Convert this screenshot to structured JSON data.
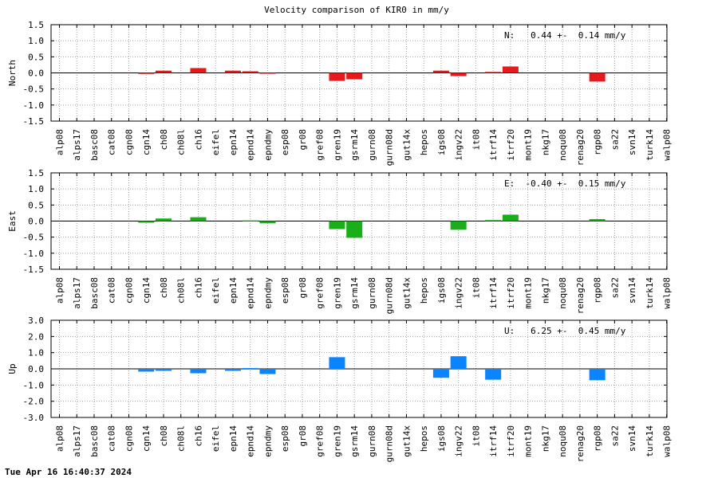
{
  "title": "Velocity comparison of KIR0 in mm/y",
  "timestamp": "Tue Apr 16 16:40:37 2024",
  "chart_data": [
    {
      "type": "bar",
      "ylabel": "North",
      "color": "#e41a1c",
      "ylim": [
        -1.5,
        1.5
      ],
      "yticks": [
        "1.5",
        "1.0",
        "0.5",
        "0.0",
        "-0.5",
        "-1.0",
        "-1.5"
      ],
      "annotation": "N:   0.44 +-  0.14 mm/y",
      "grid": true,
      "categories": [
        "alp08",
        "alps17",
        "basc08",
        "cat08",
        "cgn08",
        "cgn14",
        "ch08",
        "ch08l",
        "ch16",
        "eifel",
        "epn14",
        "epnd14",
        "epndmy",
        "esp08",
        "gr08",
        "gref08",
        "gren19",
        "gsrm14",
        "gurn08",
        "gurn08d",
        "gut14x",
        "hepos",
        "igs08",
        "ingv22",
        "it08",
        "itrf14",
        "itrf20",
        "mont19",
        "nkg17",
        "noqu08",
        "renag20",
        "rgp08",
        "sa22",
        "svn14",
        "turk14",
        "walp08"
      ],
      "values": [
        0,
        0,
        0,
        0,
        0,
        -0.03,
        0.07,
        0,
        0.15,
        0,
        0.07,
        0.05,
        -0.02,
        0,
        0,
        0,
        -0.25,
        -0.2,
        0,
        0,
        0,
        0,
        0.07,
        -0.1,
        0,
        0.03,
        0.2,
        0,
        0,
        0,
        0,
        -0.27,
        0,
        0,
        0,
        0
      ]
    },
    {
      "type": "bar",
      "ylabel": "East",
      "color": "#1aae1a",
      "ylim": [
        -1.5,
        1.5
      ],
      "yticks": [
        "1.5",
        "1.0",
        "0.5",
        "0.0",
        "-0.5",
        "-1.0",
        "-1.5"
      ],
      "annotation": "E:  -0.40 +-  0.15 mm/y",
      "grid": true,
      "categories": [
        "alp08",
        "alps17",
        "basc08",
        "cat08",
        "cgn08",
        "cgn14",
        "ch08",
        "ch08l",
        "ch16",
        "eifel",
        "epn14",
        "epnd14",
        "epndmy",
        "esp08",
        "gr08",
        "gref08",
        "gren19",
        "gsrm14",
        "gurn08",
        "gurn08d",
        "gut14x",
        "hepos",
        "igs08",
        "ingv22",
        "it08",
        "itrf14",
        "itrf20",
        "mont19",
        "nkg17",
        "noqu08",
        "renag20",
        "rgp08",
        "sa22",
        "svn14",
        "turk14",
        "walp08"
      ],
      "values": [
        0,
        0,
        0,
        0,
        0,
        -0.05,
        0.08,
        0,
        0.12,
        0,
        0,
        0.02,
        -0.07,
        0,
        0,
        0,
        -0.25,
        -0.52,
        0,
        0,
        0,
        0,
        0,
        -0.27,
        0,
        0.03,
        0.2,
        0,
        0,
        0,
        0,
        0.06,
        0,
        0,
        0,
        0
      ]
    },
    {
      "type": "bar",
      "ylabel": "Up",
      "color": "#0a84ff",
      "ylim": [
        -3.0,
        3.0
      ],
      "yticks": [
        "3.0",
        "2.0",
        "1.0",
        "0.0",
        "-1.0",
        "-2.0",
        "-3.0"
      ],
      "annotation": "U:   6.25 +-  0.45 mm/y",
      "grid": true,
      "categories": [
        "alp08",
        "alps17",
        "basc08",
        "cat08",
        "cgn08",
        "cgn14",
        "ch08",
        "ch08l",
        "ch16",
        "eifel",
        "epn14",
        "epnd14",
        "epndmy",
        "esp08",
        "gr08",
        "gref08",
        "gren19",
        "gsrm14",
        "gurn08",
        "gurn08d",
        "gut14x",
        "hepos",
        "igs08",
        "ingv22",
        "it08",
        "itrf14",
        "itrf20",
        "mont19",
        "nkg17",
        "noqu08",
        "renag20",
        "rgp08",
        "sa22",
        "svn14",
        "turk14",
        "walp08"
      ],
      "values": [
        0,
        0,
        0,
        0,
        0,
        -0.17,
        -0.12,
        0,
        -0.27,
        0,
        -0.12,
        0.05,
        -0.32,
        0,
        0,
        0,
        0.72,
        0,
        0,
        0,
        0,
        0,
        -0.55,
        0.78,
        0,
        -0.67,
        0,
        0,
        0,
        0,
        0,
        -0.7,
        0,
        0,
        0,
        0
      ]
    }
  ]
}
